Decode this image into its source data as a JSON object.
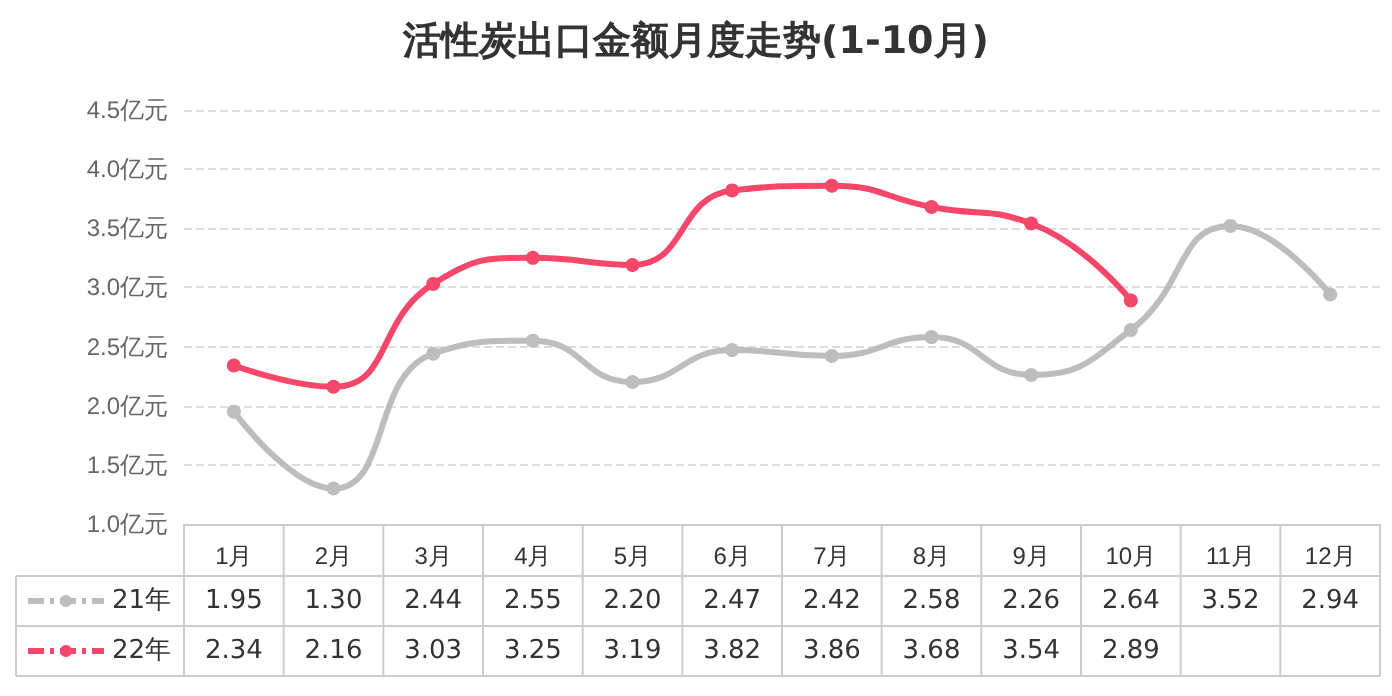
{
  "chart_data": {
    "type": "line",
    "title": "活性炭出口金额月度走势(1-10月)",
    "categories": [
      "1月",
      "2月",
      "3月",
      "4月",
      "5月",
      "6月",
      "7月",
      "8月",
      "9月",
      "10月",
      "11月",
      "12月"
    ],
    "series": [
      {
        "name": "21年",
        "color": "#bdbdbd",
        "values": [
          1.95,
          1.3,
          2.44,
          2.55,
          2.2,
          2.47,
          2.42,
          2.58,
          2.26,
          2.64,
          3.52,
          2.94
        ],
        "value_labels": [
          "1.95",
          "1.30",
          "2.44",
          "2.55",
          "2.20",
          "2.47",
          "2.42",
          "2.58",
          "2.26",
          "2.64",
          "3.52",
          "2.94"
        ]
      },
      {
        "name": "22年",
        "color": "#f5476a",
        "values": [
          2.34,
          2.16,
          3.03,
          3.25,
          3.19,
          3.82,
          3.86,
          3.68,
          3.54,
          2.89,
          null,
          null
        ],
        "value_labels": [
          "2.34",
          "2.16",
          "3.03",
          "3.25",
          "3.19",
          "3.82",
          "3.86",
          "3.68",
          "3.54",
          "2.89",
          null,
          null
        ]
      }
    ],
    "ylim": [
      1.0,
      4.5
    ],
    "yticks": [
      {
        "value": 1.0,
        "label": "1.0亿元"
      },
      {
        "value": 1.5,
        "label": "1.5亿元"
      },
      {
        "value": 2.0,
        "label": "2.0亿元"
      },
      {
        "value": 2.5,
        "label": "2.5亿元"
      },
      {
        "value": 3.0,
        "label": "3.0亿元"
      },
      {
        "value": 3.5,
        "label": "3.5亿元"
      },
      {
        "value": 4.0,
        "label": "4.0亿元"
      },
      {
        "value": 4.5,
        "label": "4.5亿元"
      }
    ],
    "grid": "y",
    "legend": "bottom left",
    "marker": "circle",
    "line_style": "solid"
  }
}
